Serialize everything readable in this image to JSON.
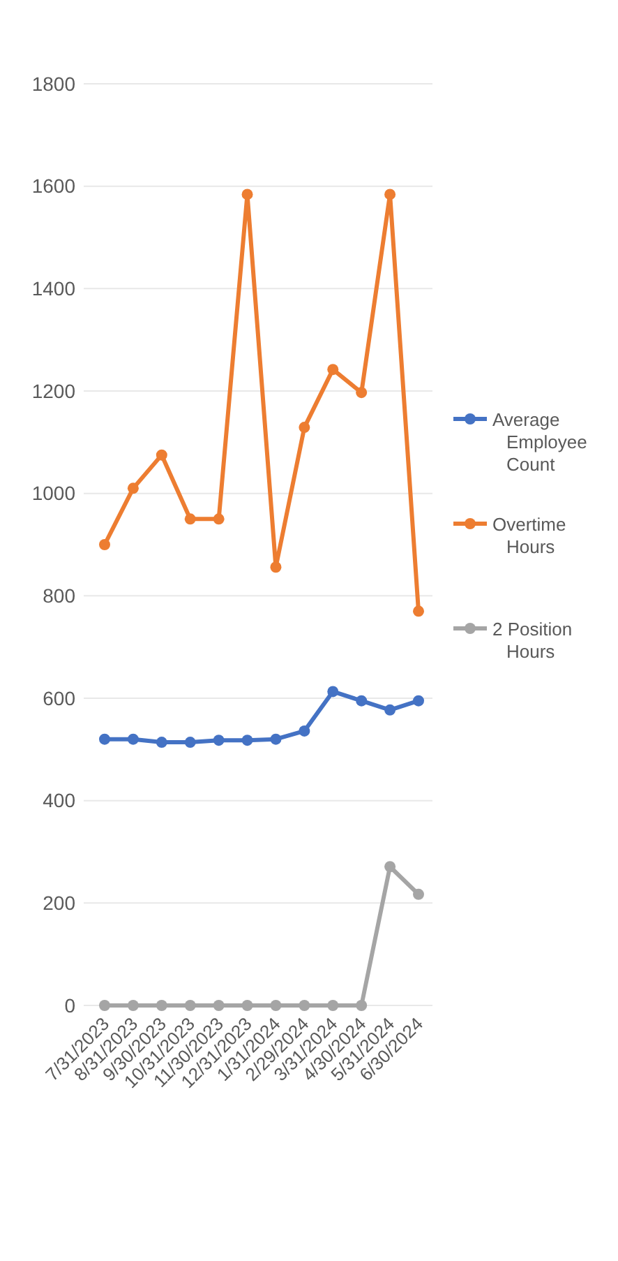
{
  "chart_data": {
    "type": "line",
    "categories": [
      "7/31/2023",
      "8/31/2023",
      "9/30/2023",
      "10/31/2023",
      "11/30/2023",
      "12/31/2023",
      "1/31/2024",
      "2/29/2024",
      "3/31/2024",
      "4/30/2024",
      "5/31/2024",
      "6/30/2024"
    ],
    "series": [
      {
        "name": "Average Employee Count",
        "color": "#4472c4",
        "values": [
          520,
          520,
          514,
          514,
          518,
          518,
          520,
          536,
          613,
          595,
          577,
          595
        ]
      },
      {
        "name": "Overtime Hours",
        "color": "#ed7d31",
        "values": [
          900,
          1010,
          1075,
          950,
          950,
          1584,
          856,
          1129,
          1242,
          1197,
          1584,
          770
        ]
      },
      {
        "name": "2 Position Hours",
        "color": "#a5a5a5",
        "values": [
          0,
          0,
          0,
          0,
          0,
          0,
          0,
          0,
          0,
          0,
          271,
          217
        ]
      }
    ],
    "ylim": [
      0,
      1800
    ],
    "yticks": [
      0,
      200,
      400,
      600,
      800,
      1000,
      1200,
      1400,
      1600,
      1800
    ],
    "grid": "y",
    "legend": "right",
    "marker": "circle",
    "line_style": "solid"
  }
}
